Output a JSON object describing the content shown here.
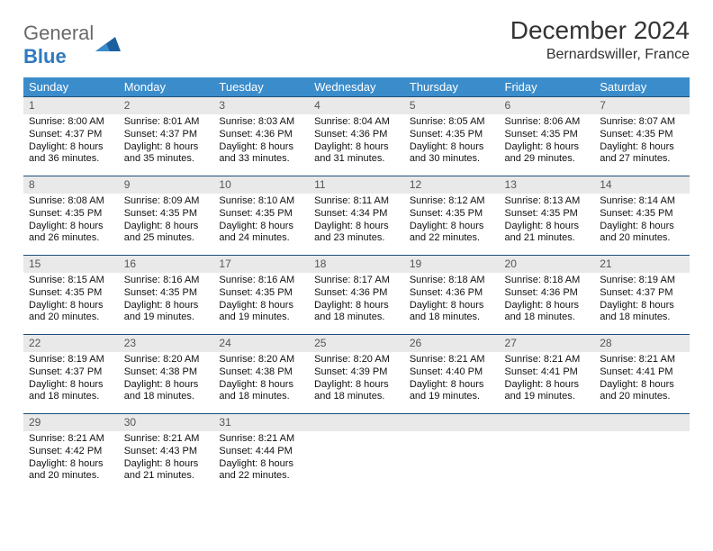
{
  "brand": {
    "part1": "General",
    "part2": "Blue",
    "part1_color": "#6a6a6a",
    "part2_color": "#2f7ac0",
    "mark_color": "#1c5f9e"
  },
  "header": {
    "title": "December 2024",
    "location": "Bernardswiller, France",
    "title_fontsize": 28,
    "location_fontsize": 16
  },
  "calendar": {
    "header_bg": "#3a8ccb",
    "header_fg": "#ffffff",
    "daynum_bg": "#e9e9e9",
    "daynum_border_top": "#1c4f7a",
    "days_of_week": [
      "Sunday",
      "Monday",
      "Tuesday",
      "Wednesday",
      "Thursday",
      "Friday",
      "Saturday"
    ],
    "weeks": [
      [
        {
          "n": "1",
          "sunrise": "8:00 AM",
          "sunset": "4:37 PM",
          "dl1": "Daylight: 8 hours",
          "dl2": "and 36 minutes."
        },
        {
          "n": "2",
          "sunrise": "8:01 AM",
          "sunset": "4:37 PM",
          "dl1": "Daylight: 8 hours",
          "dl2": "and 35 minutes."
        },
        {
          "n": "3",
          "sunrise": "8:03 AM",
          "sunset": "4:36 PM",
          "dl1": "Daylight: 8 hours",
          "dl2": "and 33 minutes."
        },
        {
          "n": "4",
          "sunrise": "8:04 AM",
          "sunset": "4:36 PM",
          "dl1": "Daylight: 8 hours",
          "dl2": "and 31 minutes."
        },
        {
          "n": "5",
          "sunrise": "8:05 AM",
          "sunset": "4:35 PM",
          "dl1": "Daylight: 8 hours",
          "dl2": "and 30 minutes."
        },
        {
          "n": "6",
          "sunrise": "8:06 AM",
          "sunset": "4:35 PM",
          "dl1": "Daylight: 8 hours",
          "dl2": "and 29 minutes."
        },
        {
          "n": "7",
          "sunrise": "8:07 AM",
          "sunset": "4:35 PM",
          "dl1": "Daylight: 8 hours",
          "dl2": "and 27 minutes."
        }
      ],
      [
        {
          "n": "8",
          "sunrise": "8:08 AM",
          "sunset": "4:35 PM",
          "dl1": "Daylight: 8 hours",
          "dl2": "and 26 minutes."
        },
        {
          "n": "9",
          "sunrise": "8:09 AM",
          "sunset": "4:35 PM",
          "dl1": "Daylight: 8 hours",
          "dl2": "and 25 minutes."
        },
        {
          "n": "10",
          "sunrise": "8:10 AM",
          "sunset": "4:35 PM",
          "dl1": "Daylight: 8 hours",
          "dl2": "and 24 minutes."
        },
        {
          "n": "11",
          "sunrise": "8:11 AM",
          "sunset": "4:34 PM",
          "dl1": "Daylight: 8 hours",
          "dl2": "and 23 minutes."
        },
        {
          "n": "12",
          "sunrise": "8:12 AM",
          "sunset": "4:35 PM",
          "dl1": "Daylight: 8 hours",
          "dl2": "and 22 minutes."
        },
        {
          "n": "13",
          "sunrise": "8:13 AM",
          "sunset": "4:35 PM",
          "dl1": "Daylight: 8 hours",
          "dl2": "and 21 minutes."
        },
        {
          "n": "14",
          "sunrise": "8:14 AM",
          "sunset": "4:35 PM",
          "dl1": "Daylight: 8 hours",
          "dl2": "and 20 minutes."
        }
      ],
      [
        {
          "n": "15",
          "sunrise": "8:15 AM",
          "sunset": "4:35 PM",
          "dl1": "Daylight: 8 hours",
          "dl2": "and 20 minutes."
        },
        {
          "n": "16",
          "sunrise": "8:16 AM",
          "sunset": "4:35 PM",
          "dl1": "Daylight: 8 hours",
          "dl2": "and 19 minutes."
        },
        {
          "n": "17",
          "sunrise": "8:16 AM",
          "sunset": "4:35 PM",
          "dl1": "Daylight: 8 hours",
          "dl2": "and 19 minutes."
        },
        {
          "n": "18",
          "sunrise": "8:17 AM",
          "sunset": "4:36 PM",
          "dl1": "Daylight: 8 hours",
          "dl2": "and 18 minutes."
        },
        {
          "n": "19",
          "sunrise": "8:18 AM",
          "sunset": "4:36 PM",
          "dl1": "Daylight: 8 hours",
          "dl2": "and 18 minutes."
        },
        {
          "n": "20",
          "sunrise": "8:18 AM",
          "sunset": "4:36 PM",
          "dl1": "Daylight: 8 hours",
          "dl2": "and 18 minutes."
        },
        {
          "n": "21",
          "sunrise": "8:19 AM",
          "sunset": "4:37 PM",
          "dl1": "Daylight: 8 hours",
          "dl2": "and 18 minutes."
        }
      ],
      [
        {
          "n": "22",
          "sunrise": "8:19 AM",
          "sunset": "4:37 PM",
          "dl1": "Daylight: 8 hours",
          "dl2": "and 18 minutes."
        },
        {
          "n": "23",
          "sunrise": "8:20 AM",
          "sunset": "4:38 PM",
          "dl1": "Daylight: 8 hours",
          "dl2": "and 18 minutes."
        },
        {
          "n": "24",
          "sunrise": "8:20 AM",
          "sunset": "4:38 PM",
          "dl1": "Daylight: 8 hours",
          "dl2": "and 18 minutes."
        },
        {
          "n": "25",
          "sunrise": "8:20 AM",
          "sunset": "4:39 PM",
          "dl1": "Daylight: 8 hours",
          "dl2": "and 18 minutes."
        },
        {
          "n": "26",
          "sunrise": "8:21 AM",
          "sunset": "4:40 PM",
          "dl1": "Daylight: 8 hours",
          "dl2": "and 19 minutes."
        },
        {
          "n": "27",
          "sunrise": "8:21 AM",
          "sunset": "4:41 PM",
          "dl1": "Daylight: 8 hours",
          "dl2": "and 19 minutes."
        },
        {
          "n": "28",
          "sunrise": "8:21 AM",
          "sunset": "4:41 PM",
          "dl1": "Daylight: 8 hours",
          "dl2": "and 20 minutes."
        }
      ],
      [
        {
          "n": "29",
          "sunrise": "8:21 AM",
          "sunset": "4:42 PM",
          "dl1": "Daylight: 8 hours",
          "dl2": "and 20 minutes."
        },
        {
          "n": "30",
          "sunrise": "8:21 AM",
          "sunset": "4:43 PM",
          "dl1": "Daylight: 8 hours",
          "dl2": "and 21 minutes."
        },
        {
          "n": "31",
          "sunrise": "8:21 AM",
          "sunset": "4:44 PM",
          "dl1": "Daylight: 8 hours",
          "dl2": "and 22 minutes."
        },
        null,
        null,
        null,
        null
      ]
    ],
    "labels": {
      "sunrise_prefix": "Sunrise: ",
      "sunset_prefix": "Sunset: "
    }
  }
}
